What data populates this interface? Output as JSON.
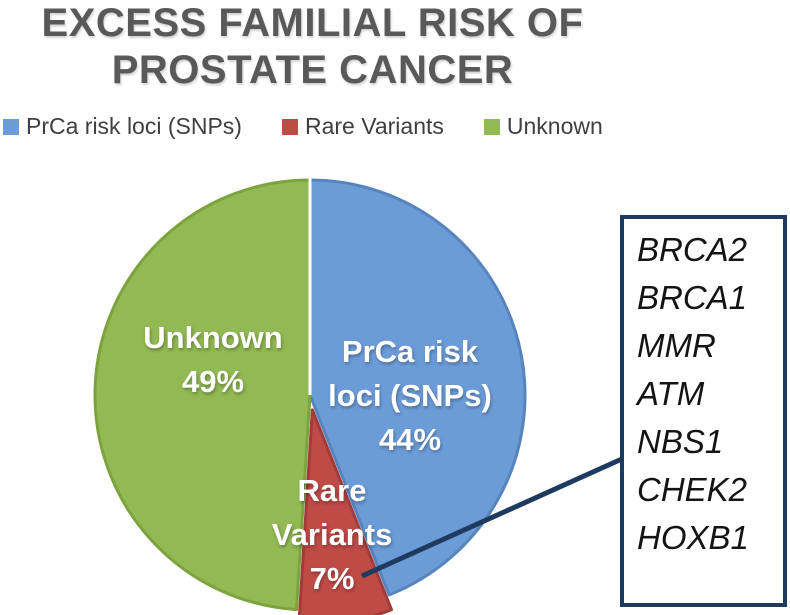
{
  "title": {
    "lines": [
      "EXCESS FAMILIAL RISK OF",
      "PROSTATE CANCER"
    ]
  },
  "colors": {
    "title_text": "#595959",
    "legend_text": "#3F3F3F",
    "label_text": "#FFFFFF",
    "separator": "#FFFFFF"
  },
  "chart_data": {
    "type": "pie",
    "title": "EXCESS FAMILIAL RISK OF PROSTATE CANCER",
    "start_angle_deg": 0,
    "direction": "clockwise",
    "legend_position": "top",
    "slices": [
      {
        "id": "prca-risk-loci-snps",
        "name": "PrCa risk loci (SNPs)",
        "value": 44,
        "pct_label": "44%",
        "color": "#6C9CD8",
        "border_color": "#5884BE",
        "exploded": false,
        "label_lines": [
          "PrCa risk",
          "loci (SNPs)",
          "44%"
        ]
      },
      {
        "id": "rare-variants",
        "name": "Rare Variants",
        "value": 7,
        "pct_label": "7%",
        "color": "#BF4B47",
        "border_color": "#A03C39",
        "exploded": true,
        "label_lines": [
          "Rare",
          "Variants",
          "7%"
        ]
      },
      {
        "id": "unknown",
        "name": "Unknown",
        "value": 49,
        "pct_label": "49%",
        "color": "#92B953",
        "border_color": "#7CA33E",
        "exploded": false,
        "label_lines": [
          "Unknown",
          "49%"
        ]
      }
    ]
  },
  "annotation": {
    "points_to": "Rare Variants",
    "connector_color": "#1E3A5E",
    "box_border_color": "#1E3A5E",
    "genes": [
      "BRCA2",
      "BRCA1",
      "MMR",
      "ATM",
      "NBS1",
      "CHEK2",
      "HOXB1"
    ]
  }
}
